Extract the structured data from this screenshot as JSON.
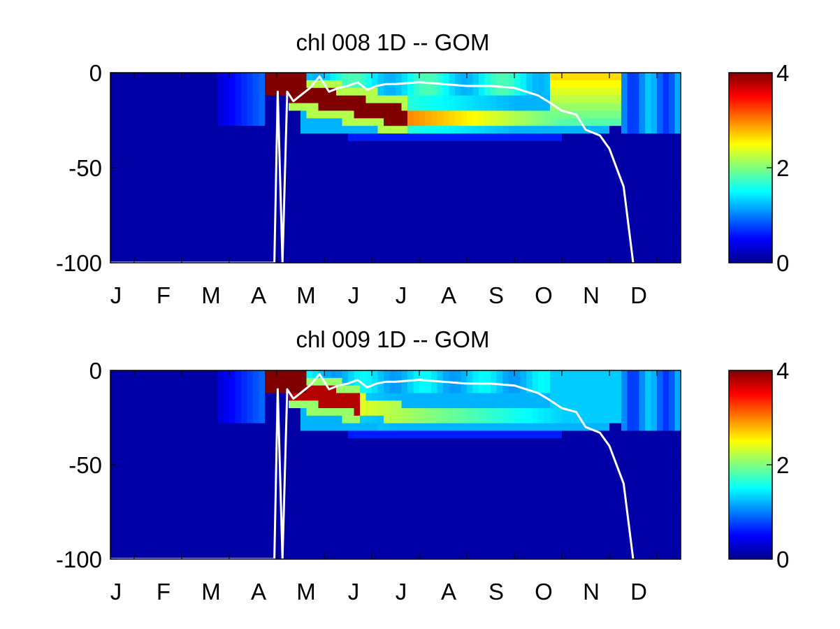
{
  "chart_data": [
    {
      "type": "heatmap",
      "title": "chl  008 1D   -- GOM",
      "x_tick_labels": [
        "J",
        "F",
        "M",
        "A",
        "M",
        "J",
        "J",
        "A",
        "S",
        "O",
        "N",
        "D"
      ],
      "y_tick_labels": [
        "0",
        "-50",
        "-100"
      ],
      "y_ticks": [
        0,
        -50,
        -100
      ],
      "ylim": [
        -100,
        0
      ],
      "colorbar": {
        "ticks": [
          "0",
          "2",
          "4"
        ],
        "range": [
          0,
          4
        ],
        "colormap": "jet"
      },
      "line_color": "#ffffff",
      "mixed_layer_depth": {
        "months": [
          0,
          1,
          2,
          3,
          3.45,
          3.52,
          3.62,
          3.72,
          3.85,
          4.0,
          4.2,
          4.4,
          4.5,
          4.6,
          4.8,
          5.0,
          5.2,
          5.4,
          5.6,
          5.8,
          6.0,
          6.5,
          7.0,
          7.5,
          8.0,
          8.5,
          9.0,
          9.2,
          9.5,
          9.8,
          10.0,
          10.3,
          10.5,
          10.8,
          11.0
        ],
        "depth": [
          -100,
          -100,
          -100,
          -100,
          -100,
          -10,
          -100,
          -10,
          -15,
          -12,
          -8,
          -2,
          -6,
          -10,
          -8,
          -7,
          -5,
          -9,
          -7,
          -6,
          -6,
          -5,
          -6,
          -7,
          -7,
          -8,
          -12,
          -15,
          -20,
          -22,
          -30,
          -33,
          -40,
          -60,
          -100
        ]
      }
    },
    {
      "type": "heatmap",
      "title": "chl  009 1D   -- GOM",
      "x_tick_labels": [
        "J",
        "F",
        "M",
        "A",
        "M",
        "J",
        "J",
        "A",
        "S",
        "O",
        "N",
        "D"
      ],
      "y_tick_labels": [
        "0",
        "-50",
        "-100"
      ],
      "y_ticks": [
        0,
        -50,
        -100
      ],
      "ylim": [
        -100,
        0
      ],
      "colorbar": {
        "ticks": [
          "0",
          "2",
          "4"
        ],
        "range": [
          0,
          4
        ],
        "colormap": "jet"
      },
      "line_color": "#ffffff",
      "mixed_layer_depth": {
        "months": [
          0,
          1,
          2,
          3,
          3.45,
          3.52,
          3.62,
          3.72,
          3.85,
          4.0,
          4.2,
          4.4,
          4.5,
          4.6,
          4.8,
          5.0,
          5.2,
          5.4,
          5.6,
          5.8,
          6.0,
          6.5,
          7.0,
          7.5,
          8.0,
          8.5,
          9.0,
          9.2,
          9.5,
          9.8,
          10.0,
          10.3,
          10.5,
          10.8,
          11.0
        ],
        "depth": [
          -100,
          -100,
          -100,
          -100,
          -100,
          -10,
          -100,
          -10,
          -15,
          -12,
          -8,
          -2,
          -6,
          -10,
          -8,
          -7,
          -5,
          -9,
          -7,
          -6,
          -6,
          -5,
          -6,
          -7,
          -7,
          -8,
          -12,
          -15,
          -20,
          -22,
          -30,
          -33,
          -40,
          -60,
          -100
        ]
      }
    }
  ]
}
